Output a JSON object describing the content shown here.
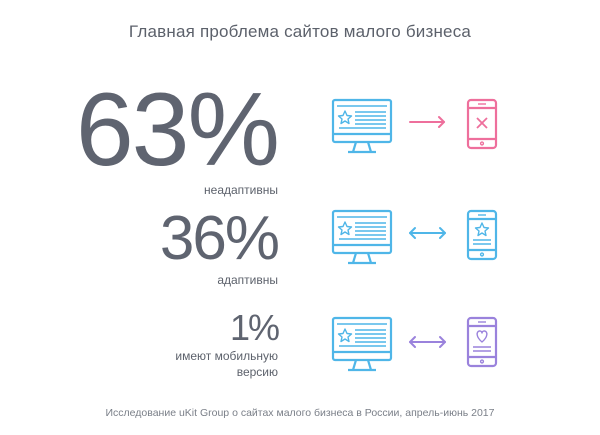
{
  "title": "Главная проблема сайтов малого бизнеса",
  "colors": {
    "monitor": "#4fb6e8",
    "phone_bad": "#ee6f9c",
    "phone_ok": "#4fb6e8",
    "phone_mobile": "#9a82dc",
    "text": "#5f6470"
  },
  "chart_data": {
    "type": "table",
    "rows": [
      {
        "value": 63,
        "display": "63%",
        "label": "неадаптивны",
        "relation": "one-way-arrow",
        "phone_icon": "cross-icon",
        "phone_color": "#ee6f9c"
      },
      {
        "value": 36,
        "display": "36%",
        "label": "адаптивны",
        "relation": "two-way-arrow",
        "phone_icon": "star-icon",
        "phone_color": "#4fb6e8"
      },
      {
        "value": 1,
        "display": "1%",
        "label_line1": "имеют мобильную",
        "label_line2": "версию",
        "relation": "two-way-arrow",
        "phone_icon": "heart-icon",
        "phone_color": "#9a82dc"
      }
    ]
  },
  "footer": "Исследование uKit Group о сайтах малого бизнеса в России, апрель-июнь 2017"
}
